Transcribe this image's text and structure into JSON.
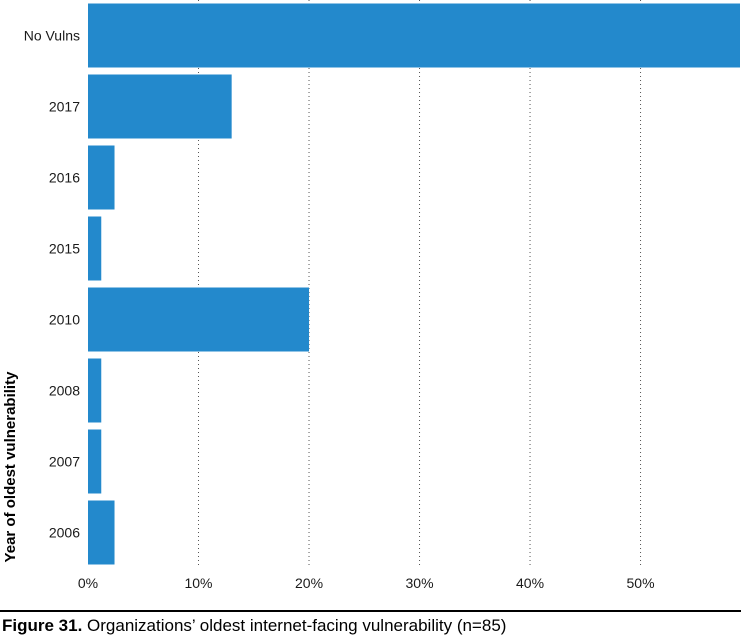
{
  "chart_data": {
    "type": "bar",
    "orientation": "horizontal",
    "categories": [
      "No Vulns",
      "2017",
      "2016",
      "2015",
      "2010",
      "2008",
      "2007",
      "2006"
    ],
    "values": [
      59,
      13,
      2.4,
      1.2,
      20,
      1.2,
      1.2,
      2.4
    ],
    "unit": "%",
    "ylabel": "Year of oldest vulnerability",
    "xlim": [
      0,
      59
    ],
    "xticks": [
      "0%",
      "10%",
      "20%",
      "30%",
      "40%",
      "50%"
    ],
    "grid": "vertical dotted",
    "bar_color": "#2389CC"
  },
  "caption": {
    "number": "Figure 31.",
    "text": " Organizations’ oldest internet-facing vulnerability (n=85)"
  }
}
